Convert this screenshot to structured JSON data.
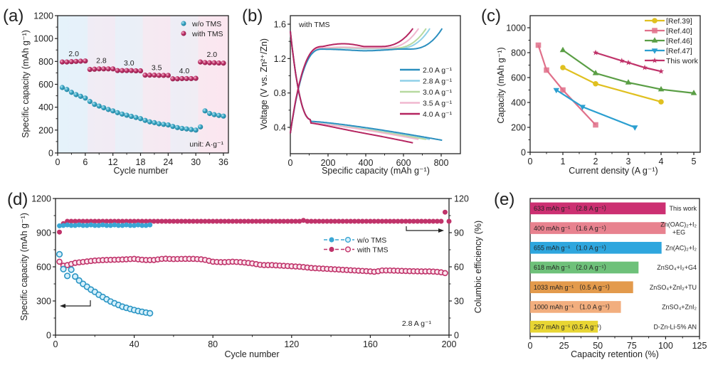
{
  "figure": {
    "panels": [
      "(a)",
      "(b)",
      "(c)",
      "(d)",
      "(e)"
    ]
  },
  "chart_data": [
    {
      "id": "a",
      "panel_label": "(a)",
      "type": "scatter",
      "title": "",
      "xlabel": "Cycle number",
      "ylabel": "Specific capacity  (mAh g⁻¹)",
      "xlim": [
        0,
        37
      ],
      "ylim": [
        0,
        1200
      ],
      "xticks": [
        0,
        6,
        12,
        18,
        24,
        30,
        36
      ],
      "yticks": [
        0,
        200,
        400,
        600,
        800,
        1000,
        1200
      ],
      "legend": {
        "placement": "top-right",
        "entries": [
          "w/o TMS",
          "with TMS"
        ]
      },
      "annotations": {
        "unit": "unit: A·g⁻¹",
        "rates": [
          {
            "label": "2.0",
            "x": 3.5,
            "y": 870
          },
          {
            "label": "2.8",
            "x": 9.5,
            "y": 810
          },
          {
            "label": "3.0",
            "x": 15.5,
            "y": 790
          },
          {
            "label": "3.5",
            "x": 21.5,
            "y": 750
          },
          {
            "label": "4.0",
            "x": 27.5,
            "y": 720
          },
          {
            "label": "2.0",
            "x": 33.5,
            "y": 865
          }
        ]
      },
      "background_bands": "alternating light-blue / light-pink per rate step",
      "series": [
        {
          "name": "w/o TMS",
          "color": "#3aa6c4",
          "x": [
            1,
            2,
            3,
            4,
            5,
            6,
            7,
            8,
            9,
            10,
            11,
            12,
            13,
            14,
            15,
            16,
            17,
            18,
            19,
            20,
            21,
            22,
            23,
            24,
            25,
            26,
            27,
            28,
            29,
            30,
            31,
            32,
            33,
            34,
            35,
            36
          ],
          "y": [
            572,
            555,
            530,
            510,
            495,
            480,
            450,
            425,
            410,
            395,
            380,
            368,
            352,
            340,
            330,
            320,
            310,
            300,
            285,
            272,
            265,
            255,
            250,
            245,
            232,
            222,
            215,
            210,
            205,
            200,
            228,
            368,
            345,
            335,
            328,
            322
          ]
        },
        {
          "name": "with TMS",
          "color": "#c0336a",
          "x": [
            1,
            2,
            3,
            4,
            5,
            6,
            7,
            8,
            9,
            10,
            11,
            12,
            13,
            14,
            15,
            16,
            17,
            18,
            19,
            20,
            21,
            22,
            23,
            24,
            25,
            26,
            27,
            28,
            29,
            30,
            31,
            32,
            33,
            34,
            35,
            36
          ],
          "y": [
            795,
            795,
            798,
            800,
            802,
            804,
            730,
            732,
            735,
            735,
            735,
            735,
            720,
            720,
            720,
            720,
            718,
            718,
            680,
            680,
            680,
            678,
            678,
            678,
            648,
            648,
            650,
            650,
            650,
            652,
            795,
            790,
            788,
            788,
            786,
            785
          ]
        }
      ]
    },
    {
      "id": "b",
      "panel_label": "(b)",
      "type": "line",
      "title": "with TMS",
      "xlabel": "Specific capacity (mAh g⁻¹)",
      "ylabel": "Voltage (V vs. Zn²⁺/Zn)",
      "xlim": [
        0,
        900
      ],
      "ylim": [
        0.1,
        1.7
      ],
      "xticks": [
        0,
        200,
        400,
        600,
        800
      ],
      "yticks": [
        0.4,
        0.8,
        1.2,
        1.6
      ],
      "legend": {
        "placement": "center-right",
        "entries": [
          "2.0 A g⁻¹",
          "2.8 A g⁻¹",
          "3.0 A g⁻¹",
          "3.5 A g⁻¹",
          "4.0 A g⁻¹"
        ]
      },
      "series": [
        {
          "name": "2.0 A g⁻¹",
          "color": "#2b8fbf",
          "max_capacity": 805,
          "charge_plateau": 1.31,
          "discharge_end": 0.25
        },
        {
          "name": "2.8 A g⁻¹",
          "color": "#8fd0e8",
          "max_capacity": 740,
          "charge_plateau": 1.315,
          "discharge_end": 0.26
        },
        {
          "name": "3.0 A g⁻¹",
          "color": "#b7d9a0",
          "max_capacity": 720,
          "charge_plateau": 1.32,
          "discharge_end": 0.26
        },
        {
          "name": "3.5 A g⁻¹",
          "color": "#f0b7cf",
          "max_capacity": 680,
          "charge_plateau": 1.325,
          "discharge_end": 0.26
        },
        {
          "name": "4.0 A g⁻¹",
          "color": "#b52560",
          "max_capacity": 650,
          "charge_plateau": 1.34,
          "discharge_end": 0.25
        }
      ]
    },
    {
      "id": "c",
      "panel_label": "(c)",
      "type": "line",
      "title": "",
      "xlabel": "Current density (A g⁻¹)",
      "ylabel": "Capacity (mAh g⁻¹)",
      "xlim": [
        0,
        5.2
      ],
      "ylim": [
        0,
        1100
      ],
      "xticks": [
        0,
        1,
        2,
        3,
        4,
        5
      ],
      "yticks": [
        0,
        200,
        400,
        600,
        800,
        1000
      ],
      "legend": {
        "placement": "top-right",
        "entries": [
          "[Ref.39]",
          "[Ref.40]",
          "[Ref.46]",
          "[Ref.47]",
          "This work"
        ]
      },
      "series": [
        {
          "name": "[Ref.39]",
          "color": "#e0c020",
          "marker": "circle",
          "x": [
            1,
            2,
            4
          ],
          "y": [
            680,
            550,
            405
          ]
        },
        {
          "name": "[Ref.40]",
          "color": "#e0708a",
          "marker": "square",
          "x": [
            0.25,
            0.5,
            1,
            2
          ],
          "y": [
            860,
            660,
            500,
            220
          ]
        },
        {
          "name": "[Ref.46]",
          "color": "#5a9e45",
          "marker": "triangle-up",
          "x": [
            1,
            2,
            3,
            4,
            5
          ],
          "y": [
            820,
            635,
            560,
            505,
            475
          ]
        },
        {
          "name": "[Ref.47]",
          "color": "#2b9fd0",
          "marker": "triangle-down",
          "x": [
            0.8,
            1.6,
            3.2
          ],
          "y": [
            500,
            365,
            200
          ]
        },
        {
          "name": "This work",
          "color": "#c0336a",
          "marker": "star",
          "x": [
            2,
            2.8,
            3,
            3.5,
            4
          ],
          "y": [
            800,
            735,
            720,
            680,
            650
          ]
        }
      ]
    },
    {
      "id": "d",
      "panel_label": "(d)",
      "type": "scatter",
      "title": "",
      "xlabel": "Cycle number",
      "ylabel": "Specific capacity (mAh g⁻¹)",
      "y2label": "Columbic efficiency (%)",
      "xlim": [
        0,
        200
      ],
      "ylim": [
        0,
        1200
      ],
      "y2lim": [
        0,
        120
      ],
      "xticks": [
        0,
        40,
        80,
        120,
        160,
        200
      ],
      "yticks": [
        0,
        300,
        600,
        900,
        1200
      ],
      "y2ticks": [
        0,
        30,
        60,
        90,
        120
      ],
      "legend": {
        "placement": "center",
        "entries": [
          "w/o TMS",
          "with TMS"
        ]
      },
      "annotations": {
        "rate": "2.8 A g⁻¹"
      },
      "series": [
        {
          "name": "w/o TMS capacity",
          "color": "#3aa6d4",
          "axis": "left",
          "x": [
            2,
            4,
            6,
            8,
            10,
            12,
            14,
            16,
            18,
            20,
            22,
            24,
            26,
            28,
            30,
            32,
            34,
            36,
            38,
            40,
            42,
            44,
            46,
            48
          ],
          "y": [
            710,
            580,
            520,
            575,
            515,
            480,
            450,
            425,
            400,
            380,
            355,
            335,
            315,
            295,
            280,
            265,
            250,
            240,
            230,
            220,
            212,
            205,
            198,
            192
          ]
        },
        {
          "name": "w/o TMS efficiency",
          "color": "#3aa6d4",
          "axis": "right",
          "x_range": [
            2,
            48
          ],
          "value": 96.5,
          "first": 96
        },
        {
          "name": "with TMS capacity",
          "color": "#c0336a",
          "axis": "left",
          "x": [
            2,
            4,
            6,
            8,
            10,
            15,
            20,
            25,
            30,
            35,
            40,
            45,
            50,
            55,
            60,
            65,
            70,
            75,
            80,
            85,
            90,
            95,
            100,
            105,
            110,
            115,
            120,
            125,
            130,
            135,
            140,
            145,
            150,
            155,
            160,
            163,
            165,
            170,
            175,
            180,
            185,
            190,
            195,
            198
          ],
          "y": [
            645,
            610,
            615,
            625,
            635,
            645,
            655,
            660,
            662,
            665,
            670,
            660,
            660,
            672,
            668,
            670,
            670,
            665,
            645,
            640,
            645,
            640,
            630,
            615,
            615,
            610,
            605,
            600,
            590,
            585,
            580,
            575,
            570,
            565,
            560,
            555,
            568,
            568,
            565,
            562,
            560,
            560,
            555,
            545
          ]
        },
        {
          "name": "with TMS efficiency",
          "color": "#c0336a",
          "axis": "right",
          "x_range": [
            2,
            200
          ],
          "value": 100,
          "first": 90.5,
          "outlier": {
            "x": 198,
            "y": 108
          }
        }
      ]
    },
    {
      "id": "e",
      "panel_label": "(e)",
      "type": "bar",
      "orientation": "horizontal",
      "title": "",
      "xlabel": "Capacity retention (%)",
      "ylabel": "",
      "xlim": [
        0,
        125
      ],
      "xticks": [
        0,
        25,
        50,
        75,
        100,
        125
      ],
      "categories": [
        "This work",
        "Zn(OAC)₂+I₂ +EG",
        "Zn(AC)₂+I₂",
        "ZnSO₄+I₂+G4",
        "ZnSO₄+ZnI₂+TU",
        "ZnSO₄+ZnI₂",
        "D-Zn-Li-5% AN"
      ],
      "category_lines": [
        [
          "This work"
        ],
        [
          "Zn(OAC)₂+I₂",
          "+EG"
        ],
        [
          "Zn(AC)₂+I₂"
        ],
        [
          "ZnSO₄+I₂+G4"
        ],
        [
          "ZnSO₄+ZnI₂+TU"
        ],
        [
          "ZnSO₄+ZnI₂"
        ],
        [
          "D-Zn-Li-5% AN"
        ]
      ],
      "values": [
        100,
        100,
        97,
        80,
        76,
        67,
        50
      ],
      "bar_labels": [
        "633 mAh g⁻¹ （2.8 A g⁻¹）",
        "400 mAh g⁻¹ （1.6 A g⁻¹）",
        "655 mAh g⁻¹ （1.0 A g⁻¹）",
        "618 mAh g⁻¹ （2.0 A g⁻¹）",
        "1033 mAh g⁻¹ （0.5 A g⁻¹）",
        "1000 mAh g⁻¹ （1.0 A g⁻¹）",
        "297 mAh g⁻¹ (0.5 A g⁻¹)"
      ],
      "colors": [
        "#cc3072",
        "#e8828f",
        "#2ea6de",
        "#6ec17a",
        "#e39a4c",
        "#f2ae7e",
        "#e8d533"
      ]
    }
  ]
}
